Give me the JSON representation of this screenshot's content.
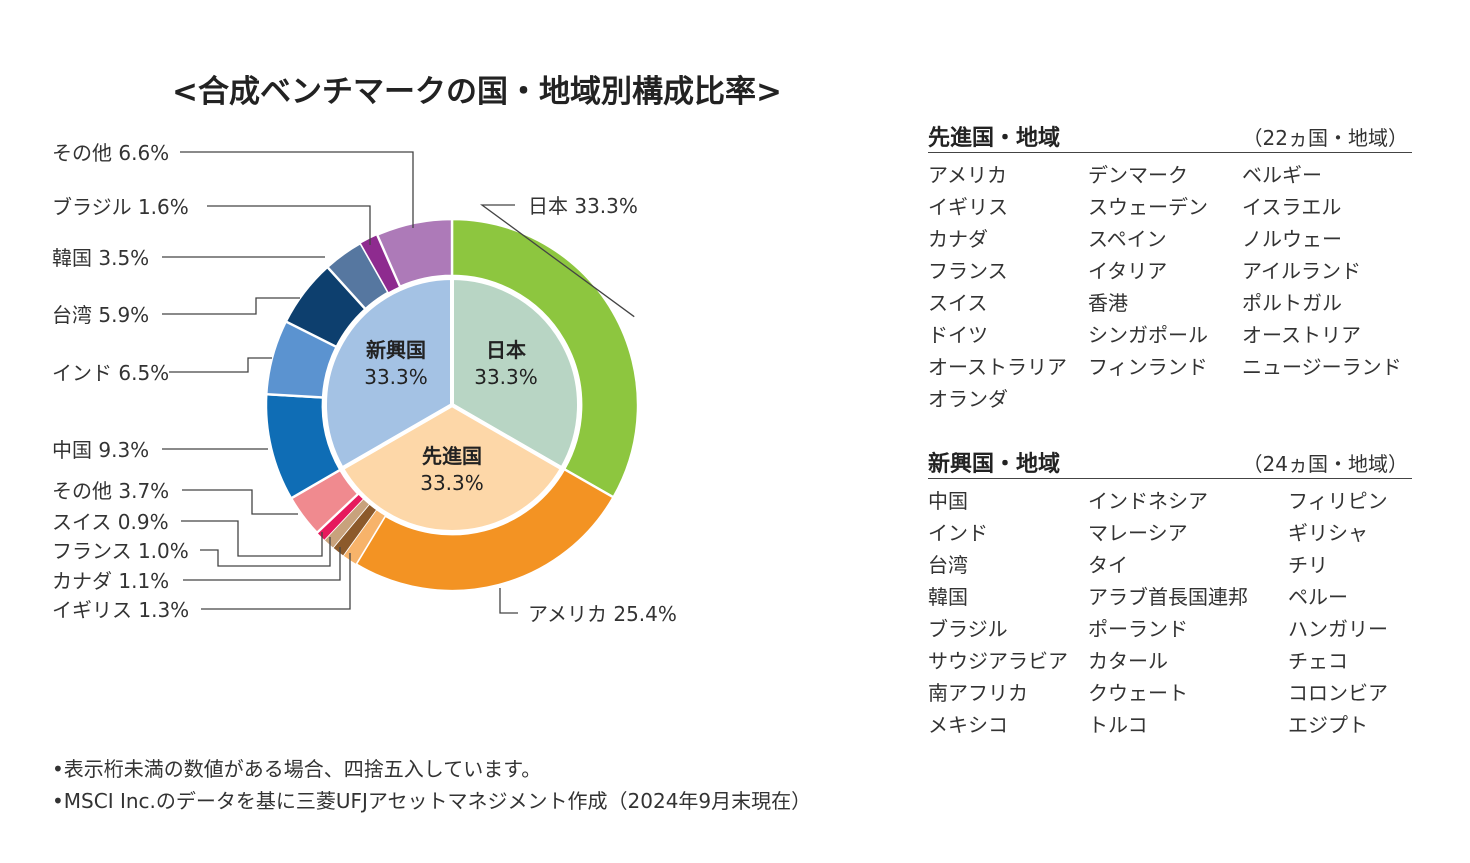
{
  "chart_data": {
    "type": "pie",
    "title": "<合成ベンチマークの国・地域別構成比率>",
    "inner_ring": [
      {
        "name": "日本",
        "value_label": "33.3%",
        "value": 33.3,
        "color": "#b8d5c4"
      },
      {
        "name": "先進国",
        "value_label": "33.3%",
        "value": 33.3,
        "color": "#fdd7a8"
      },
      {
        "name": "新興国",
        "value_label": "33.3%",
        "value": 33.3,
        "color": "#a4c2e4"
      }
    ],
    "outer_ring": [
      {
        "label": "日本 33.3%",
        "value": 33.3,
        "color": "#8dc63f"
      },
      {
        "label": "アメリカ 25.4%",
        "value": 25.4,
        "color": "#f39323"
      },
      {
        "label": "イギリス 1.3%",
        "value": 1.3,
        "color": "#f7b36a"
      },
      {
        "label": "カナダ 1.1%",
        "value": 1.1,
        "color": "#8c5a2b"
      },
      {
        "label": "フランス 1.0%",
        "value": 1.0,
        "color": "#c8a27c"
      },
      {
        "label": "スイス 0.9%",
        "value": 0.9,
        "color": "#e6195d"
      },
      {
        "label": "その他 3.7%",
        "value": 3.7,
        "color": "#f08a8f"
      },
      {
        "label": "中国 9.3%",
        "value": 9.3,
        "color": "#0f6db5"
      },
      {
        "label": "インド 6.5%",
        "value": 6.5,
        "color": "#5b93d0"
      },
      {
        "label": "台湾 5.9%",
        "value": 5.9,
        "color": "#0d3f6e"
      },
      {
        "label": "韓国 3.5%",
        "value": 3.5,
        "color": "#5677a0"
      },
      {
        "label": "ブラジル 1.6%",
        "value": 1.6,
        "color": "#8e2b8f"
      },
      {
        "label": "その他 6.6%",
        "value": 6.6,
        "color": "#ad7ab8"
      }
    ]
  },
  "developed": {
    "title": "先進国・地域",
    "count": "（22ヵ国・地域）",
    "col1": [
      "アメリカ",
      "イギリス",
      "カナダ",
      "フランス",
      "スイス",
      "ドイツ",
      "オーストラリア",
      "オランダ"
    ],
    "col2": [
      "デンマーク",
      "スウェーデン",
      "スペイン",
      "イタリア",
      "香港",
      "シンガポール",
      "フィンランド"
    ],
    "col3": [
      "ベルギー",
      "イスラエル",
      "ノルウェー",
      "アイルランド",
      "ポルトガル",
      "オーストリア",
      "ニュージーランド"
    ]
  },
  "emerging": {
    "title": "新興国・地域",
    "count": "（24ヵ国・地域）",
    "col1": [
      "中国",
      "インド",
      "台湾",
      "韓国",
      "ブラジル",
      "サウジアラビア",
      "南アフリカ",
      "メキシコ"
    ],
    "col2": [
      "インドネシア",
      "マレーシア",
      "タイ",
      "アラブ首長国連邦",
      "ポーランド",
      "カタール",
      "クウェート",
      "トルコ"
    ],
    "col3": [
      "フィリピン",
      "ギリシャ",
      "チリ",
      "ペルー",
      "ハンガリー",
      "チェコ",
      "コロンビア",
      "エジプト"
    ]
  },
  "notes": [
    "•表示桁未満の数値がある場合、四捨五入しています。",
    "•MSCI Inc.のデータを基に三菱UFJアセットマネジメント作成（2024年9月末現在）"
  ]
}
